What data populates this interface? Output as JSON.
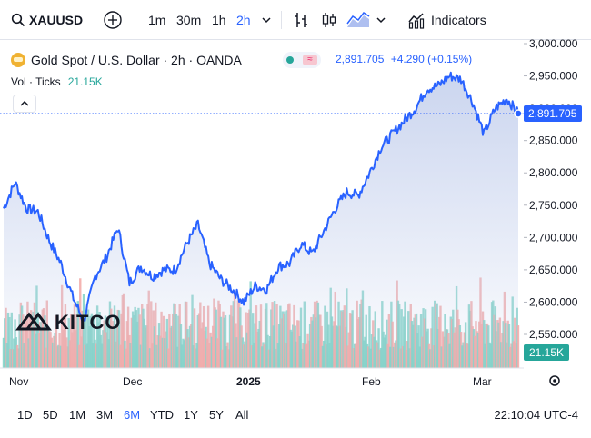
{
  "toolbar": {
    "symbol": "XAUUSD",
    "timeframes": [
      "1m",
      "30m",
      "1h",
      "2h"
    ],
    "active_timeframe": "2h",
    "indicators_label": "Indicators"
  },
  "legend": {
    "title": "Gold Spot / U.S. Dollar · 2h · OANDA",
    "price": "2,891.705",
    "change": "+4.290 (+0.15%)",
    "vol_label": "Vol · Ticks",
    "vol_value": "21.15K"
  },
  "watermark": "KITCO",
  "price_axis": {
    "ticks": [
      "3,000.000",
      "2,950.000",
      "2,900.000",
      "2,850.000",
      "2,800.000",
      "2,750.000",
      "2,700.000",
      "2,650.000",
      "2,600.000",
      "2,550.000"
    ],
    "current_price_label": "2,891.705",
    "volume_label": "21.15K"
  },
  "time_axis": {
    "labels": [
      "Nov",
      "Dec",
      "2025",
      "Feb",
      "Mar"
    ]
  },
  "ranges": [
    "1D",
    "5D",
    "1M",
    "3M",
    "6M",
    "YTD",
    "1Y",
    "5Y",
    "All"
  ],
  "active_range": "6M",
  "clock": "22:10:04 UTC-4",
  "colors": {
    "line": "#2962ff",
    "area_top": "#c8d3ee",
    "vol_up": "#7fd1c6",
    "vol_down": "#f2a7a5",
    "accent": "#2962ff"
  },
  "chart_data": {
    "type": "area",
    "title": "Gold Spot / U.S. Dollar · 2h · OANDA",
    "xlabel": "",
    "ylabel": "",
    "ylim": [
      2525,
      3010
    ],
    "x": [
      "Oct 28",
      "Oct 30",
      "Nov 1",
      "Nov 4",
      "Nov 6",
      "Nov 8",
      "Nov 12",
      "Nov 14",
      "Nov 18",
      "Nov 20",
      "Nov 22",
      "Nov 26",
      "Nov 28",
      "Dec 2",
      "Dec 4",
      "Dec 6",
      "Dec 10",
      "Dec 12",
      "Dec 16",
      "Dec 18",
      "Dec 20",
      "Dec 24",
      "Dec 27",
      "Dec 31",
      "Jan 3",
      "Jan 7",
      "Jan 10",
      "Jan 14",
      "Jan 17",
      "Jan 21",
      "Jan 24",
      "Jan 28",
      "Jan 31",
      "Feb 3",
      "Feb 5",
      "Feb 7",
      "Feb 11",
      "Feb 14",
      "Feb 18",
      "Feb 20",
      "Feb 24",
      "Feb 26",
      "Feb 28",
      "Mar 3",
      "Mar 5",
      "Mar 7"
    ],
    "values": [
      2745,
      2785,
      2745,
      2740,
      2695,
      2660,
      2610,
      2570,
      2640,
      2670,
      2715,
      2630,
      2655,
      2640,
      2650,
      2650,
      2690,
      2720,
      2660,
      2635,
      2620,
      2600,
      2625,
      2620,
      2655,
      2660,
      2690,
      2675,
      2710,
      2745,
      2770,
      2765,
      2800,
      2840,
      2860,
      2880,
      2900,
      2930,
      2935,
      2950,
      2945,
      2910,
      2860,
      2900,
      2915,
      2892
    ],
    "volume_label": "Vol · Ticks",
    "current_price": 2891.705,
    "grid": false
  }
}
